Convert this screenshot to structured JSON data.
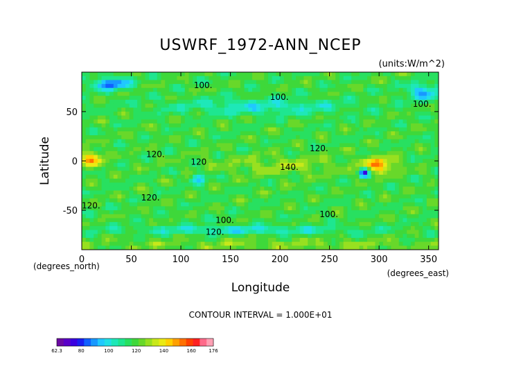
{
  "chart_data": {
    "type": "heatmap",
    "title": "USWRF_1972-ANN_NCEP",
    "units_label": "(units:W/m^2)",
    "xlabel": "Longitude",
    "ylabel": "Latitude",
    "x_unit_note": "(degrees_east)",
    "y_unit_note": "(degrees_north)",
    "xlim": [
      0,
      360
    ],
    "ylim": [
      -90,
      90
    ],
    "x_ticks": [
      0,
      50,
      100,
      150,
      200,
      250,
      300,
      350
    ],
    "y_ticks": [
      -50,
      0,
      50
    ],
    "contour_interval_text": "CONTOUR INTERVAL = 1.000E+01",
    "contour_labels": [
      {
        "x": 113,
        "y": 74,
        "text": "100."
      },
      {
        "x": 190,
        "y": 62,
        "text": "100."
      },
      {
        "x": 334,
        "y": 55,
        "text": "100."
      },
      {
        "x": 230,
        "y": 10,
        "text": "120."
      },
      {
        "x": 65,
        "y": 4,
        "text": "120."
      },
      {
        "x": 200,
        "y": -9,
        "text": "140."
      },
      {
        "x": 110,
        "y": -4,
        "text": "120"
      },
      {
        "x": 0,
        "y": -48,
        "text": "120."
      },
      {
        "x": 60,
        "y": -40,
        "text": "120."
      },
      {
        "x": 240,
        "y": -57,
        "text": "100."
      },
      {
        "x": 135,
        "y": -63,
        "text": "100."
      },
      {
        "x": 125,
        "y": -75,
        "text": "120."
      }
    ],
    "colorbar": {
      "min": 62.3,
      "max": 176,
      "tick_labels": [
        "62.3",
        "80",
        "100",
        "120",
        "140",
        "160",
        "176"
      ],
      "tick_values": [
        62.3,
        80,
        100,
        120,
        140,
        160,
        176
      ],
      "colors": [
        "#6b0aa3",
        "#5a00c8",
        "#3a00e0",
        "#1a1ef0",
        "#1060ff",
        "#1898ff",
        "#20c8ff",
        "#20e0e6",
        "#1ee8b8",
        "#1ee690",
        "#28e060",
        "#3ed83a",
        "#68d82a",
        "#98e020",
        "#c8e81a",
        "#eaea14",
        "#ffd000",
        "#ffa000",
        "#ff7000",
        "#ff4000",
        "#ff2020",
        "#ff6a8a",
        "#ffa0b4"
      ]
    },
    "grid": false
  }
}
